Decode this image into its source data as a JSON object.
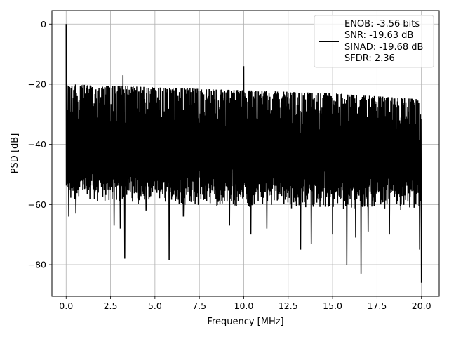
{
  "chart_data": {
    "type": "line",
    "xlabel": "Frequency [MHz]",
    "ylabel": "PSD [dB]",
    "xlim": [
      -0.8,
      21.0
    ],
    "ylim": [
      -90.5,
      4.5
    ],
    "xticks": [
      0.0,
      2.5,
      5.0,
      7.5,
      10.0,
      12.5,
      15.0,
      17.5,
      20.0
    ],
    "xtick_labels": [
      "0.0",
      "2.5",
      "5.0",
      "7.5",
      "10.0",
      "12.5",
      "15.0",
      "17.5",
      "20.0"
    ],
    "yticks": [
      0,
      -20,
      -40,
      -60,
      -80
    ],
    "ytick_labels": [
      "0",
      "−20",
      "−40",
      "−60",
      "−80"
    ],
    "grid": true,
    "legend_position": "top-right",
    "series": [
      {
        "name": "ENOB: -3.56 bits\nSNR: -19.63 dB\nSINAD: -19.68 dB\nSFDR: 2.36",
        "legend_lines": [
          "ENOB: -3.56 bits",
          "SNR: -19.63 dB",
          "SINAD: -19.68 dB",
          "SFDR: 2.36"
        ],
        "color": "#000000",
        "freq_range": [
          0.0,
          20.0
        ],
        "peak_envelope": [
          {
            "x": 0.0,
            "y": -20
          },
          {
            "x": 5.0,
            "y": -21
          },
          {
            "x": 10.0,
            "y": -22
          },
          {
            "x": 15.0,
            "y": -23
          },
          {
            "x": 20.0,
            "y": -25
          }
        ],
        "floor_envelope": [
          {
            "x": 0.0,
            "y": -55
          },
          {
            "x": 10.0,
            "y": -57
          },
          {
            "x": 20.0,
            "y": -58
          }
        ],
        "spikes": [
          {
            "x": 0.0,
            "y": 0
          },
          {
            "x": 0.02,
            "y": -10
          },
          {
            "x": 3.2,
            "y": -17
          },
          {
            "x": 10.0,
            "y": -14
          }
        ],
        "dips": [
          {
            "x": 0.15,
            "y": -64
          },
          {
            "x": 0.55,
            "y": -63
          },
          {
            "x": 2.7,
            "y": -67
          },
          {
            "x": 3.05,
            "y": -68
          },
          {
            "x": 3.3,
            "y": -78
          },
          {
            "x": 4.5,
            "y": -62
          },
          {
            "x": 5.8,
            "y": -78.5
          },
          {
            "x": 6.6,
            "y": -64
          },
          {
            "x": 9.2,
            "y": -67
          },
          {
            "x": 10.4,
            "y": -70
          },
          {
            "x": 11.3,
            "y": -68
          },
          {
            "x": 13.2,
            "y": -75
          },
          {
            "x": 13.8,
            "y": -73
          },
          {
            "x": 15.0,
            "y": -70
          },
          {
            "x": 15.8,
            "y": -80
          },
          {
            "x": 16.3,
            "y": -71
          },
          {
            "x": 16.6,
            "y": -83
          },
          {
            "x": 17.0,
            "y": -69
          },
          {
            "x": 18.2,
            "y": -70
          },
          {
            "x": 19.9,
            "y": -75
          },
          {
            "x": 20.0,
            "y": -86
          }
        ]
      }
    ]
  }
}
